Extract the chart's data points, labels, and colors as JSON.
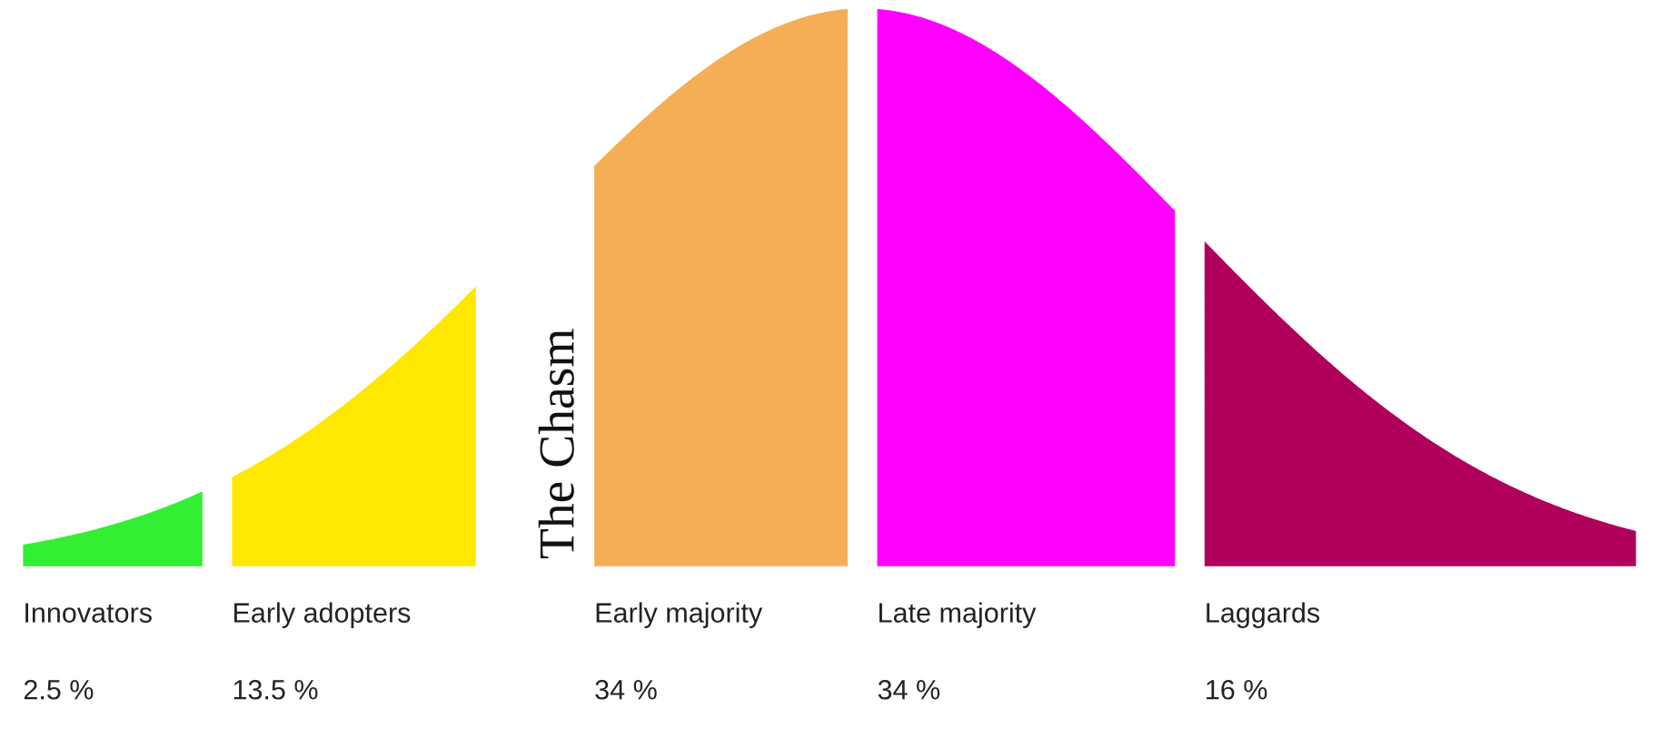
{
  "chart_data": {
    "type": "other",
    "categories": [
      "Innovators",
      "Early adopters",
      "Early majority",
      "Late majority",
      "Laggards"
    ],
    "values": [
      2.5,
      13.5,
      34,
      34,
      16
    ],
    "value_labels": [
      "2.5 %",
      "13.5 %",
      "34 %",
      "34 %",
      "16 %"
    ],
    "colors": [
      "#33ee33",
      "#ffe800",
      "#f4ae55",
      "#ff00ff",
      "#b0005c"
    ],
    "annotations": [
      "The Chasm"
    ]
  }
}
